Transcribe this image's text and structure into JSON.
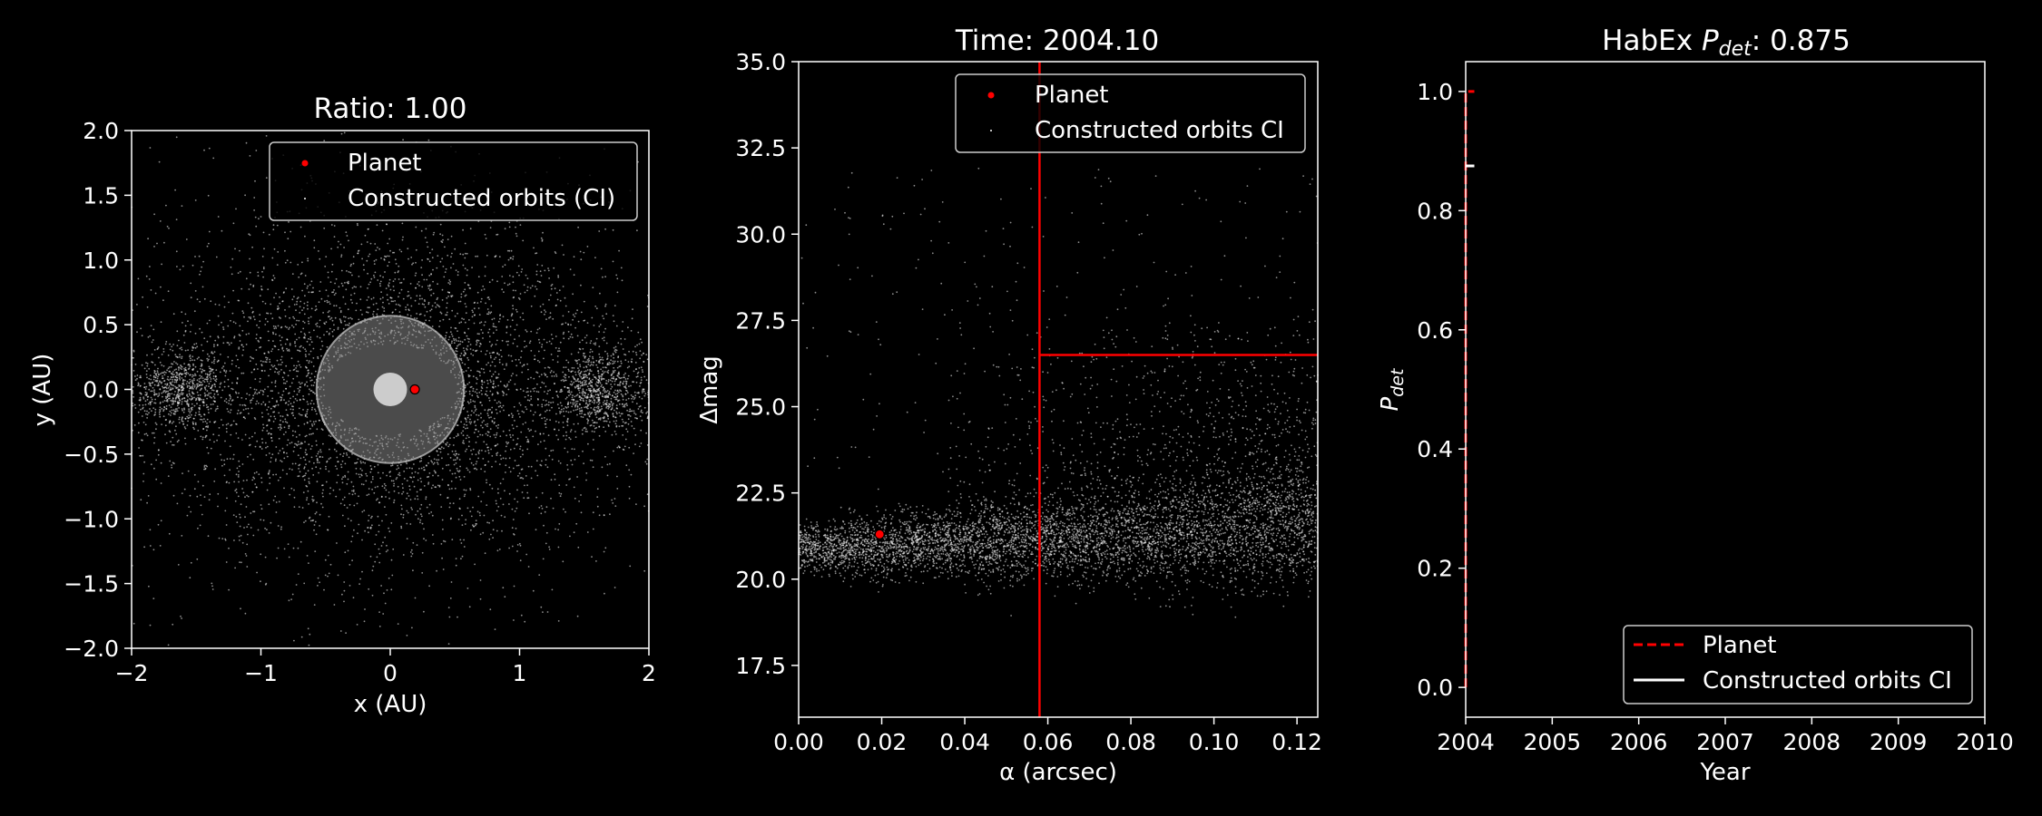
{
  "colors": {
    "background": "#000000",
    "foreground": "#ffffff",
    "planet": "#ff0000",
    "orbits": "#ffffff",
    "threshold_line": "#ff0000"
  },
  "chart_data": [
    {
      "type": "scatter",
      "title": "Ratio: 1.00",
      "xlabel": "x (AU)",
      "ylabel": "y (AU)",
      "xlim": [
        -2,
        2
      ],
      "ylim": [
        -2,
        2
      ],
      "xticks": [
        "−2",
        "−1",
        "0",
        "1",
        "2"
      ],
      "yticks": [
        "−2.0",
        "−1.5",
        "−1.0",
        "−0.5",
        "0.0",
        "0.5",
        "1.0",
        "1.5",
        "2.0"
      ],
      "legend_position": "top-right",
      "series": [
        {
          "name": "Planet",
          "points": [
            [
              0.19,
              0.0
            ]
          ]
        },
        {
          "name": "Constructed orbits (CI)",
          "distribution": "dense point cloud"
        }
      ],
      "inner_working_angle_au": 0.57,
      "star_radius_au": 0.13
    },
    {
      "type": "scatter",
      "title": "Time: 2004.10",
      "xlabel": "α (arcsec)",
      "ylabel": "Δmag",
      "xlim": [
        0,
        0.125
      ],
      "ylim": [
        16,
        35
      ],
      "xticks": [
        "0.00",
        "0.02",
        "0.04",
        "0.06",
        "0.08",
        "0.10",
        "0.12"
      ],
      "yticks": [
        "17.5",
        "20.0",
        "22.5",
        "25.0",
        "27.5",
        "30.0",
        "32.5",
        "35.0"
      ],
      "legend_position": "top-right",
      "series": [
        {
          "name": "Planet",
          "points": [
            [
              0.0195,
              21.3
            ]
          ]
        },
        {
          "name": "Constructed orbits CI",
          "distribution": "band near Δmag 21"
        }
      ],
      "iwa_arcsec": 0.058,
      "dmag_limit": 26.5
    },
    {
      "type": "line",
      "title_prefix": "HabEx ",
      "title_symbol": "P",
      "title_subscript": "det",
      "title_suffix": ": 0.875",
      "xlabel": "Year",
      "ylabel_symbol": "P",
      "ylabel_subscript": "det",
      "xlim": [
        2004,
        2010
      ],
      "ylim": [
        -0.05,
        1.05
      ],
      "xticks": [
        "2004",
        "2005",
        "2006",
        "2007",
        "2008",
        "2009",
        "2010"
      ],
      "yticks": [
        "0.0",
        "0.2",
        "0.4",
        "0.6",
        "0.8",
        "1.0"
      ],
      "legend_position": "lower-right",
      "series": [
        {
          "name": "Planet",
          "style": "dashed",
          "x": [
            2004.0,
            2004.0,
            2004.1
          ],
          "y": [
            0.0,
            1.0,
            1.0
          ]
        },
        {
          "name": "Constructed orbits CI",
          "style": "solid",
          "x": [
            2004.0,
            2004.1
          ],
          "y": [
            0.875,
            0.875
          ]
        }
      ]
    }
  ]
}
